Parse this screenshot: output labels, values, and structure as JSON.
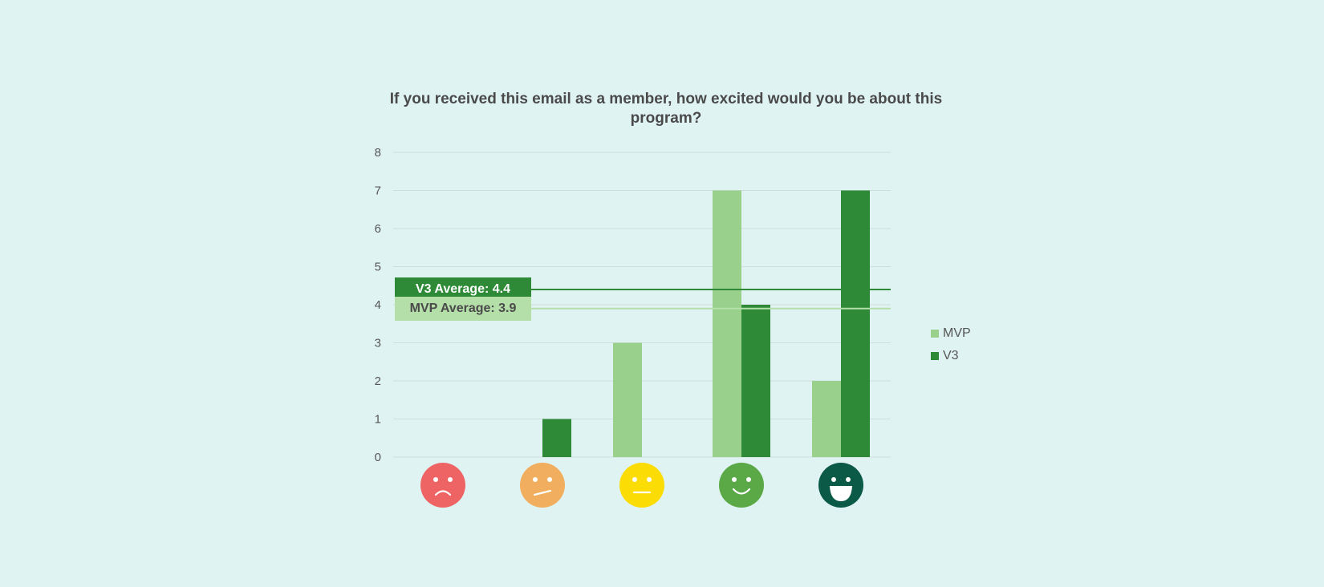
{
  "chart_data": {
    "type": "bar",
    "title": "If you received this email as a member, how excited would you be about this program?",
    "categories": [
      "very-sad-face-icon",
      "slightly-unhappy-face-icon",
      "neutral-face-icon",
      "happy-face-icon",
      "very-happy-face-icon"
    ],
    "series": [
      {
        "name": "MVP",
        "values": [
          0,
          0,
          3,
          7,
          2
        ],
        "color": "#98d08c"
      },
      {
        "name": "V3",
        "values": [
          0,
          1,
          0,
          4,
          7
        ],
        "color": "#2e8a37"
      }
    ],
    "ylim": [
      0,
      8
    ],
    "yticks": [
      0,
      1,
      2,
      3,
      4,
      5,
      6,
      7,
      8
    ],
    "grid": true,
    "legend_position": "right",
    "reference_lines": [
      {
        "label": "V3 Average: 4.4",
        "value": 4.4,
        "color": "#2e8a37",
        "text_color": "#ffffff"
      },
      {
        "label": "MVP Average: 3.9",
        "value": 3.9,
        "color": "#b4dfa9",
        "text_color": "#4a4a4a"
      }
    ],
    "face_colors": [
      "#ee6464",
      "#f0ae5e",
      "#fbdc05",
      "#5ba946",
      "#0b5a47"
    ]
  }
}
